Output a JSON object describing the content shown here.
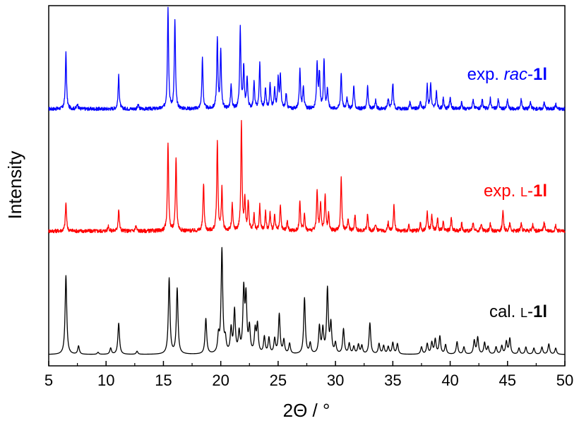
{
  "chart_data": {
    "type": "line",
    "xlabel": "2Θ / °",
    "ylabel": "Intensity",
    "xlim": [
      5,
      50
    ],
    "x_ticks": [
      5,
      10,
      15,
      20,
      25,
      30,
      35,
      40,
      45,
      50
    ],
    "x_tick_labels": [
      "5",
      "10",
      "15",
      "20",
      "25",
      "30",
      "35",
      "40",
      "45",
      "50"
    ],
    "y_ticks_shown": false,
    "grid": false,
    "legend": "none",
    "series": [
      {
        "name": "exp. rac-1l",
        "label": {
          "prefix": "exp. ",
          "italic": "rac",
          "suffix": "-",
          "bold": "1l"
        },
        "color": "#0000ff",
        "baseline_fraction": 0.82,
        "noise": true,
        "peaks": [
          [
            6.5,
            0.56
          ],
          [
            7.5,
            0.05
          ],
          [
            11.1,
            0.33
          ],
          [
            12.8,
            0.04
          ],
          [
            15.4,
            1.0
          ],
          [
            16.0,
            0.88
          ],
          [
            18.4,
            0.5
          ],
          [
            19.7,
            0.69
          ],
          [
            20.0,
            0.58
          ],
          [
            20.9,
            0.23
          ],
          [
            21.7,
            0.8
          ],
          [
            22.0,
            0.42
          ],
          [
            22.3,
            0.31
          ],
          [
            22.9,
            0.26
          ],
          [
            23.4,
            0.45
          ],
          [
            23.9,
            0.21
          ],
          [
            24.3,
            0.25
          ],
          [
            24.7,
            0.2
          ],
          [
            25.0,
            0.29
          ],
          [
            25.2,
            0.33
          ],
          [
            25.7,
            0.15
          ],
          [
            26.9,
            0.4
          ],
          [
            27.2,
            0.23
          ],
          [
            28.4,
            0.45
          ],
          [
            28.6,
            0.35
          ],
          [
            29.0,
            0.49
          ],
          [
            29.3,
            0.2
          ],
          [
            30.5,
            0.36
          ],
          [
            31.0,
            0.12
          ],
          [
            31.6,
            0.23
          ],
          [
            32.8,
            0.22
          ],
          [
            33.5,
            0.09
          ],
          [
            34.6,
            0.1
          ],
          [
            35.0,
            0.26
          ],
          [
            36.5,
            0.07
          ],
          [
            37.4,
            0.08
          ],
          [
            38.0,
            0.23
          ],
          [
            38.3,
            0.25
          ],
          [
            38.8,
            0.17
          ],
          [
            39.4,
            0.1
          ],
          [
            40.0,
            0.12
          ],
          [
            41.0,
            0.07
          ],
          [
            42.0,
            0.1
          ],
          [
            42.8,
            0.09
          ],
          [
            43.5,
            0.11
          ],
          [
            44.2,
            0.1
          ],
          [
            45.0,
            0.09
          ],
          [
            46.2,
            0.1
          ],
          [
            47.0,
            0.07
          ],
          [
            48.2,
            0.07
          ],
          [
            49.2,
            0.05
          ]
        ]
      },
      {
        "name": "exp. L-1l",
        "label": {
          "prefix": "exp. ",
          "smallcaps": "L",
          "suffix": "-",
          "bold": "1l"
        },
        "color": "#ff0000",
        "baseline_fraction": 0.82,
        "noise": true,
        "peaks": [
          [
            6.5,
            0.26
          ],
          [
            10.2,
            0.05
          ],
          [
            11.1,
            0.2
          ],
          [
            12.6,
            0.05
          ],
          [
            15.4,
            0.82
          ],
          [
            16.1,
            0.68
          ],
          [
            18.5,
            0.44
          ],
          [
            19.7,
            0.83
          ],
          [
            20.1,
            0.39
          ],
          [
            21.0,
            0.24
          ],
          [
            21.8,
            1.0
          ],
          [
            22.1,
            0.29
          ],
          [
            22.4,
            0.27
          ],
          [
            22.9,
            0.15
          ],
          [
            23.4,
            0.23
          ],
          [
            23.9,
            0.17
          ],
          [
            24.3,
            0.16
          ],
          [
            24.7,
            0.14
          ],
          [
            25.2,
            0.23
          ],
          [
            25.8,
            0.09
          ],
          [
            26.9,
            0.27
          ],
          [
            27.3,
            0.16
          ],
          [
            28.4,
            0.38
          ],
          [
            28.7,
            0.26
          ],
          [
            29.1,
            0.34
          ],
          [
            29.4,
            0.16
          ],
          [
            30.5,
            0.49
          ],
          [
            31.1,
            0.12
          ],
          [
            31.7,
            0.15
          ],
          [
            32.8,
            0.15
          ],
          [
            33.5,
            0.07
          ],
          [
            34.6,
            0.08
          ],
          [
            35.1,
            0.24
          ],
          [
            36.4,
            0.05
          ],
          [
            37.4,
            0.07
          ],
          [
            38.0,
            0.17
          ],
          [
            38.4,
            0.15
          ],
          [
            38.9,
            0.11
          ],
          [
            39.4,
            0.08
          ],
          [
            40.1,
            0.12
          ],
          [
            41.0,
            0.07
          ],
          [
            42.0,
            0.08
          ],
          [
            42.7,
            0.07
          ],
          [
            43.5,
            0.07
          ],
          [
            44.6,
            0.18
          ],
          [
            45.2,
            0.07
          ],
          [
            46.2,
            0.07
          ],
          [
            47.2,
            0.06
          ],
          [
            48.2,
            0.08
          ],
          [
            49.2,
            0.05
          ]
        ]
      },
      {
        "name": "cal. L-1l",
        "label": {
          "prefix": "cal. ",
          "smallcaps": "L",
          "suffix": "-",
          "bold": "1l"
        },
        "color": "#000000",
        "baseline_fraction": 0.94,
        "noise": false,
        "peaks": [
          [
            6.5,
            0.76
          ],
          [
            7.6,
            0.08
          ],
          [
            9.3,
            0.02
          ],
          [
            10.4,
            0.06
          ],
          [
            11.1,
            0.3
          ],
          [
            12.7,
            0.03
          ],
          [
            15.5,
            0.73
          ],
          [
            16.2,
            0.63
          ],
          [
            18.7,
            0.34
          ],
          [
            19.8,
            0.16
          ],
          [
            20.1,
            1.0
          ],
          [
            20.4,
            0.12
          ],
          [
            20.9,
            0.23
          ],
          [
            21.2,
            0.41
          ],
          [
            21.6,
            0.19
          ],
          [
            22.0,
            0.59
          ],
          [
            22.2,
            0.52
          ],
          [
            22.5,
            0.24
          ],
          [
            23.0,
            0.22
          ],
          [
            23.2,
            0.27
          ],
          [
            23.8,
            0.16
          ],
          [
            24.2,
            0.15
          ],
          [
            24.7,
            0.14
          ],
          [
            25.1,
            0.38
          ],
          [
            25.5,
            0.13
          ],
          [
            26.0,
            0.1
          ],
          [
            27.3,
            0.54
          ],
          [
            27.8,
            0.1
          ],
          [
            28.6,
            0.26
          ],
          [
            28.9,
            0.23
          ],
          [
            29.3,
            0.62
          ],
          [
            29.6,
            0.28
          ],
          [
            30.0,
            0.1
          ],
          [
            30.7,
            0.24
          ],
          [
            31.2,
            0.1
          ],
          [
            31.6,
            0.07
          ],
          [
            32.0,
            0.09
          ],
          [
            32.3,
            0.08
          ],
          [
            33.0,
            0.3
          ],
          [
            33.8,
            0.1
          ],
          [
            34.2,
            0.08
          ],
          [
            34.6,
            0.07
          ],
          [
            35.0,
            0.11
          ],
          [
            35.4,
            0.1
          ],
          [
            37.5,
            0.07
          ],
          [
            38.0,
            0.1
          ],
          [
            38.4,
            0.11
          ],
          [
            38.7,
            0.14
          ],
          [
            39.1,
            0.17
          ],
          [
            39.6,
            0.09
          ],
          [
            40.6,
            0.12
          ],
          [
            41.2,
            0.07
          ],
          [
            42.1,
            0.13
          ],
          [
            42.4,
            0.16
          ],
          [
            43.0,
            0.11
          ],
          [
            43.3,
            0.07
          ],
          [
            44.0,
            0.07
          ],
          [
            44.5,
            0.08
          ],
          [
            44.9,
            0.12
          ],
          [
            45.2,
            0.15
          ],
          [
            46.0,
            0.06
          ],
          [
            46.6,
            0.07
          ],
          [
            47.3,
            0.06
          ],
          [
            48.0,
            0.07
          ],
          [
            48.6,
            0.1
          ],
          [
            49.2,
            0.06
          ]
        ]
      }
    ]
  }
}
